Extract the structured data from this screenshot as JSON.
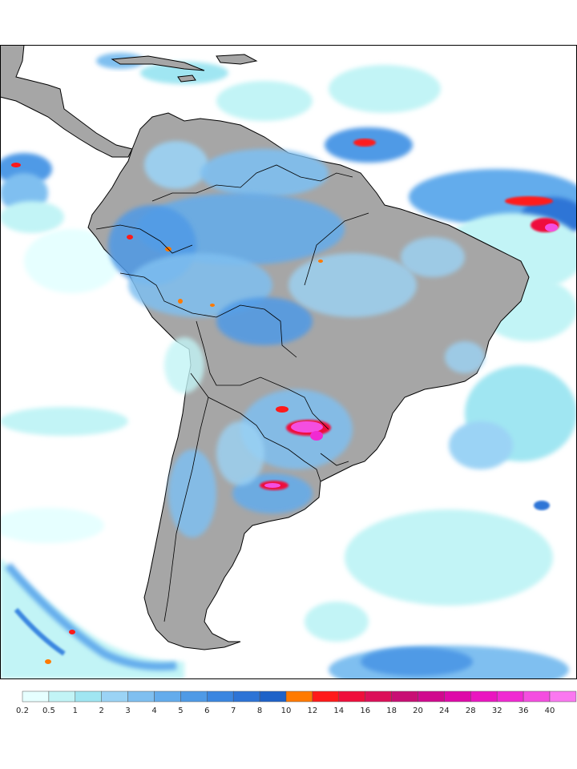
{
  "map": {
    "land_color": "#a6a6a6",
    "ocean_color": "#ffffff",
    "border_color": "#000000"
  },
  "legend": {
    "ticks": [
      "0.2",
      "0.5",
      "1",
      "2",
      "3",
      "4",
      "5",
      "6",
      "7",
      "8",
      "10",
      "12",
      "14",
      "16",
      "18",
      "20",
      "24",
      "28",
      "32",
      "36",
      "40"
    ],
    "colors": [
      "#e6ffff",
      "#c2f4f6",
      "#a0e6f2",
      "#9bd3f5",
      "#7fbff0",
      "#64acec",
      "#4f9ae6",
      "#3b86e0",
      "#2d74d6",
      "#1e62c8",
      "#ff7a00",
      "#ff1a1a",
      "#ef0f3c",
      "#dc1059",
      "#c80f74",
      "#d00a8e",
      "#de0aa8",
      "#ea16c0",
      "#f02ad2",
      "#f44ee0",
      "#fa78f0"
    ]
  }
}
